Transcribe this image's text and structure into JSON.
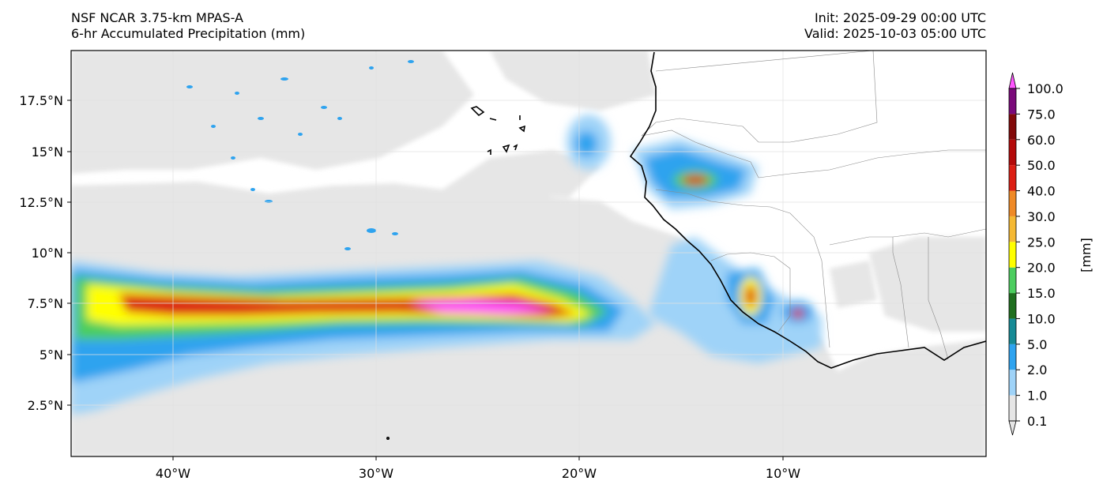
{
  "header": {
    "model": "NSF NCAR 3.75-km MPAS-A",
    "field": "6-hr Accumulated Precipitation (mm)",
    "init": "Init: 2025-09-29 00:00 UTC",
    "valid": "Valid: 2025-10-03 05:00 UTC"
  },
  "axes": {
    "lat_labels": [
      "17.5°N",
      "15°N",
      "12.5°N",
      "10°N",
      "7.5°N",
      "5°N",
      "2.5°N"
    ],
    "lon_labels": [
      "40°W",
      "30°W",
      "20°W",
      "10°W"
    ]
  },
  "colorbar": {
    "unit_label": "[mm]",
    "levels": [
      "0.1",
      "1.0",
      "2.0",
      "5.0",
      "10.0",
      "15.0",
      "20.0",
      "25.0",
      "30.0",
      "40.0",
      "50.0",
      "60.0",
      "75.0",
      "100.0"
    ],
    "colors": [
      "#e6e6e6",
      "#9fd3f8",
      "#2ea3ef",
      "#168a95",
      "#1f6f1f",
      "#4ccd5f",
      "#ffff00",
      "#f5b934",
      "#ef8a27",
      "#dc1e14",
      "#b40a0a",
      "#820a0a",
      "#7a0a7a",
      "#ff55ff"
    ]
  },
  "colors": {
    "frame": "#000000",
    "coastline": "#000000",
    "borders": "#8a8a8a"
  }
}
